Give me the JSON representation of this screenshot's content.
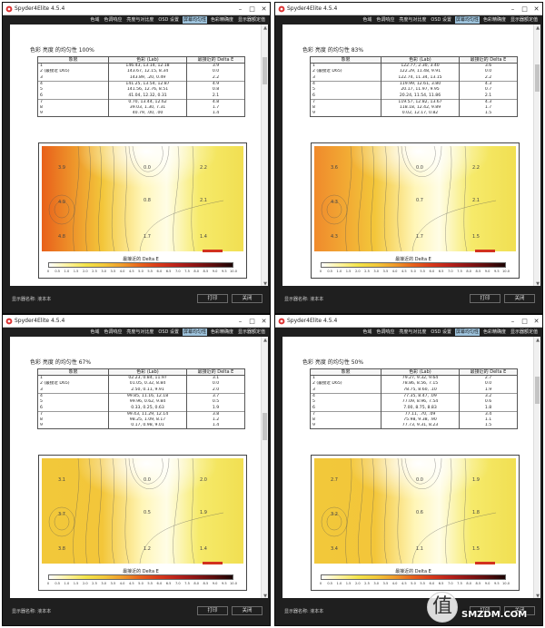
{
  "app": {
    "title": "Spyder4Elite 4.5.4",
    "tabs": [
      "色域",
      "色调响应",
      "亮度与对比度",
      "OSD 设置",
      "屏幕均匀性",
      "色彩精确度",
      "显示器额定值"
    ],
    "active_tab_index": 4,
    "footer_label": "显示器名称: 液本本",
    "print_label": "打印",
    "close_label": "关闭"
  },
  "windows": [
    {
      "heading": "色彩 亮度 的均匀性 100%",
      "table": {
        "headers": [
          "象限",
          "色彩 (Lab)",
          "最接近的 Delta E"
        ],
        "rows": [
          [
            "1",
            "146.43, 13.14, 12.18",
            "3.9"
          ],
          [
            "2 (最接近 D65)",
            "143.67, 12.15, 8.34",
            "0.0"
          ],
          [
            "3",
            "143.89, .20, 0.49",
            "2.2"
          ],
          [
            "4",
            "141.25, 13.54, 12.87",
            "4.9"
          ],
          [
            "5",
            "141.56, 12.76, 8.51",
            "0.8"
          ],
          [
            "6",
            "41.04, 12.32, 0.31",
            "2.1"
          ],
          [
            "7",
            "0.70, 13.44, 12.62",
            "4.8"
          ],
          [
            "8",
            "39.03, 1.30, 7.31",
            "1.7"
          ],
          [
            "9",
            "40.79, .00, .00",
            "1.4"
          ]
        ]
      },
      "map_labels": [
        "0.0",
        "2.2",
        "3.9",
        "0.8",
        "2.1",
        "4.9",
        "1.7",
        "1.4",
        "4.8"
      ],
      "legend_title": "最接近的 Delta E",
      "legend_ticks": [
        "0",
        "0.5",
        "1.0",
        "1.5",
        "2.0",
        "2.5",
        "3.0",
        "3.5",
        "4.0",
        "4.5",
        "5.0",
        "5.5",
        "6.0",
        "6.5",
        "7.0",
        "7.5",
        "8.0",
        "8.5",
        "9.0",
        "9.5",
        "10.0"
      ]
    },
    {
      "heading": "色彩 亮度 的均匀性 83%",
      "table": {
        "headers": [
          "象限",
          "色彩 (Lab)",
          "最接近的 Delta E"
        ],
        "rows": [
          [
            "1",
            "122.77, 2.30, 3.40",
            "3.6"
          ],
          [
            "2 (最接近 D65)",
            "122.29, 11.48, 9.91",
            "0.0"
          ],
          [
            "3",
            "122.74, 11.34, 13.15",
            "2.2"
          ],
          [
            "4",
            "119.99, 12.61, 3.80",
            "4.3"
          ],
          [
            "5",
            "20.17, 11.97, 9.95",
            "0.7"
          ],
          [
            "6",
            "20.24, 11.54, 11.86",
            "2.1"
          ],
          [
            "7",
            "119.57, 12.82, 13.67",
            "4.3"
          ],
          [
            "8",
            "118.18, 12.42, 9.89",
            "1.7"
          ],
          [
            "9",
            "0.02, 12.17, 0.82",
            "1.5"
          ]
        ]
      },
      "map_labels": [
        "0.0",
        "2.2",
        "3.6",
        "0.7",
        "2.1",
        "4.3",
        "1.7",
        "1.5",
        "4.3"
      ],
      "legend_title": "最接近的 Delta E",
      "legend_ticks": [
        "0",
        "0.5",
        "1.0",
        "1.5",
        "2.0",
        "2.5",
        "3.0",
        "3.5",
        "4.0",
        "4.5",
        "5.0",
        "5.5",
        "6.0",
        "6.5",
        "7.0",
        "7.5",
        "8.0",
        "8.5",
        "9.0",
        "9.5",
        "10.0"
      ]
    },
    {
      "heading": "色彩 亮度 的均匀性 67%",
      "table": {
        "headers": [
          "象限",
          "色彩 (Lab)",
          "最接近的 Delta E"
        ],
        "rows": [
          [
            "1",
            "02.23, 0.84, 11.97",
            "3.1"
          ],
          [
            "2 (最接近 D65)",
            "01.05, 0.32, 8.84",
            "0.0"
          ],
          [
            "3",
            "2.50, 0.11, 9.91",
            "2.0"
          ],
          [
            "4",
            "99.85, 11.16, 12.18",
            "3.7"
          ],
          [
            "5",
            "99.96, 0.62, 9.84",
            "0.5"
          ],
          [
            "6",
            "0.33, 0.25, 0.63",
            "1.9"
          ],
          [
            "7",
            "99.43, 11.29, 12.14",
            "3.8"
          ],
          [
            "8",
            "98.25, 1.09, 8.17",
            "1.2"
          ],
          [
            "9",
            "0.17, 0.98, 9.01",
            "1.4"
          ]
        ]
      },
      "map_labels": [
        "0.0",
        "2.0",
        "3.1",
        "0.5",
        "1.9",
        "3.7",
        "1.2",
        "1.4",
        "3.8"
      ],
      "legend_title": "最接近的 Delta E",
      "legend_ticks": [
        "0",
        "0.5",
        "1.0",
        "1.5",
        "2.0",
        "2.5",
        "3.0",
        "3.5",
        "4.0",
        "4.5",
        "5.0",
        "5.5",
        "6.0",
        "6.5",
        "7.0",
        "7.5",
        "8.0",
        "8.5",
        "9.0",
        "9.5",
        "10.0"
      ]
    },
    {
      "heading": "色彩 亮度 的均匀性 50%",
      "table": {
        "headers": [
          "象限",
          "色彩 (Lab)",
          "最接近的 Delta E"
        ],
        "rows": [
          [
            "1",
            "79.27, 9.32, 9.64",
            "2.7"
          ],
          [
            "2 (最接近 D65)",
            "78.86, 8.56, 7.15",
            "0.0"
          ],
          [
            "3",
            "78.75, 8.60, .10",
            "1.9"
          ],
          [
            "4",
            "77.35, 8.47, .09",
            "3.2"
          ],
          [
            "5",
            "77.09, 8.96, 7.54",
            "0.6"
          ],
          [
            "6",
            "7.00, 8.75, 8.83",
            "1.8"
          ],
          [
            "7",
            "77.11, .70, .09",
            "3.4"
          ],
          [
            "8",
            "75.98, 9.38, .90",
            "1.1"
          ],
          [
            "9",
            "77.73, 9.31, 8.23",
            "1.5"
          ]
        ]
      },
      "map_labels": [
        "0.0",
        "1.9",
        "2.7",
        "0.6",
        "1.8",
        "3.2",
        "1.1",
        "1.5",
        "3.4"
      ],
      "legend_title": "最接近的 Delta E",
      "legend_ticks": [
        "0",
        "0.5",
        "1.0",
        "1.5",
        "2.0",
        "2.5",
        "3.0",
        "3.5",
        "4.0",
        "4.5",
        "5.0",
        "5.5",
        "6.0",
        "6.5",
        "7.0",
        "7.5",
        "8.0",
        "8.5",
        "9.0",
        "9.5",
        "10.0"
      ]
    }
  ],
  "watermark": {
    "glyph": "值",
    "text": "SMZDM.COM"
  },
  "colors": {
    "chrome_bg": "#1f1f1f",
    "active_tab": "#9ec3dc",
    "heat_low": "#ffffff",
    "heat_mid": "#f3e44a",
    "heat_high": "#e8601a"
  }
}
